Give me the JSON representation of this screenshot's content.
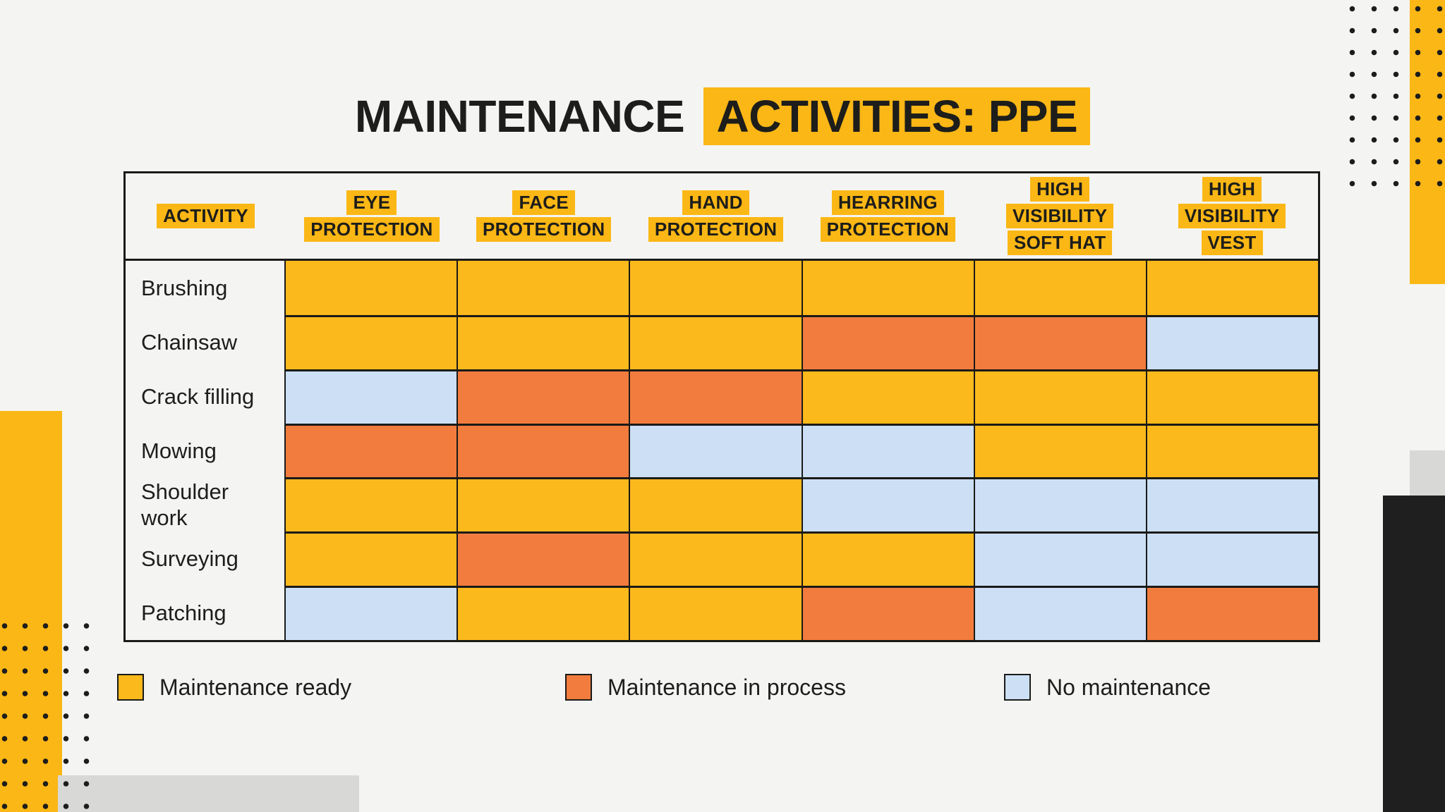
{
  "title": {
    "prefix": "MAINTENANCE",
    "highlighted": "ACTIVITIES: PPE"
  },
  "colors": {
    "accent_yellow": "#FBB715",
    "ready": "#FCB91C",
    "process": "#F27C3E",
    "none": "#CCDFF5",
    "ink": "#1D1D1B"
  },
  "table": {
    "activity_header": "ACTIVITY",
    "column_headers": [
      {
        "lines": [
          "EYE",
          "PROTECTION"
        ]
      },
      {
        "lines": [
          "FACE",
          "PROTECTION"
        ]
      },
      {
        "lines": [
          "HAND",
          "PROTECTION"
        ]
      },
      {
        "lines": [
          "HEARRING",
          "PROTECTION"
        ]
      },
      {
        "lines": [
          "HIGH",
          "VISIBILITY",
          "SOFT HAT"
        ]
      },
      {
        "lines": [
          "HIGH",
          "VISIBILITY",
          "VEST"
        ]
      }
    ],
    "rows": [
      {
        "label": "Brushing",
        "cells": [
          "ready",
          "ready",
          "ready",
          "ready",
          "ready",
          "ready"
        ]
      },
      {
        "label": "Chainsaw",
        "cells": [
          "ready",
          "ready",
          "ready",
          "process",
          "process",
          "none"
        ]
      },
      {
        "label": "Crack filling",
        "cells": [
          "none",
          "process",
          "process",
          "ready",
          "ready",
          "ready"
        ]
      },
      {
        "label": "Mowing",
        "cells": [
          "process",
          "process",
          "none",
          "none",
          "ready",
          "ready"
        ]
      },
      {
        "label": "Shoulder work",
        "cells": [
          "ready",
          "ready",
          "ready",
          "none",
          "none",
          "none"
        ]
      },
      {
        "label": "Surveying",
        "cells": [
          "ready",
          "process",
          "ready",
          "ready",
          "none",
          "none"
        ]
      },
      {
        "label": "Patching",
        "cells": [
          "none",
          "ready",
          "ready",
          "process",
          "none",
          "process"
        ]
      }
    ]
  },
  "legend": [
    {
      "label": "Maintenance ready",
      "status": "ready"
    },
    {
      "label": "Maintenance in process",
      "status": "process"
    },
    {
      "label": "No maintenance",
      "status": "none"
    }
  ],
  "chart_data": {
    "type": "table",
    "title": "MAINTENANCE ACTIVITIES: PPE",
    "row_header": "ACTIVITY",
    "columns": [
      "EYE PROTECTION",
      "FACE PROTECTION",
      "HAND PROTECTION",
      "HEARRING PROTECTION",
      "HIGH VISIBILITY SOFT HAT",
      "HIGH VISIBILITY VEST"
    ],
    "rows": [
      "Brushing",
      "Chainsaw",
      "Crack filling",
      "Mowing",
      "Shoulder work",
      "Surveying",
      "Patching"
    ],
    "values": [
      [
        "Maintenance ready",
        "Maintenance ready",
        "Maintenance ready",
        "Maintenance ready",
        "Maintenance ready",
        "Maintenance ready"
      ],
      [
        "Maintenance ready",
        "Maintenance ready",
        "Maintenance ready",
        "Maintenance in process",
        "Maintenance in process",
        "No maintenance"
      ],
      [
        "No maintenance",
        "Maintenance in process",
        "Maintenance in process",
        "Maintenance ready",
        "Maintenance ready",
        "Maintenance ready"
      ],
      [
        "Maintenance in process",
        "Maintenance in process",
        "No maintenance",
        "No maintenance",
        "Maintenance ready",
        "Maintenance ready"
      ],
      [
        "Maintenance ready",
        "Maintenance ready",
        "Maintenance ready",
        "No maintenance",
        "No maintenance",
        "No maintenance"
      ],
      [
        "Maintenance ready",
        "Maintenance in process",
        "Maintenance ready",
        "Maintenance ready",
        "No maintenance",
        "No maintenance"
      ],
      [
        "No maintenance",
        "Maintenance ready",
        "Maintenance ready",
        "Maintenance in process",
        "No maintenance",
        "Maintenance in process"
      ]
    ],
    "legend": [
      "Maintenance ready",
      "Maintenance in process",
      "No maintenance"
    ]
  }
}
